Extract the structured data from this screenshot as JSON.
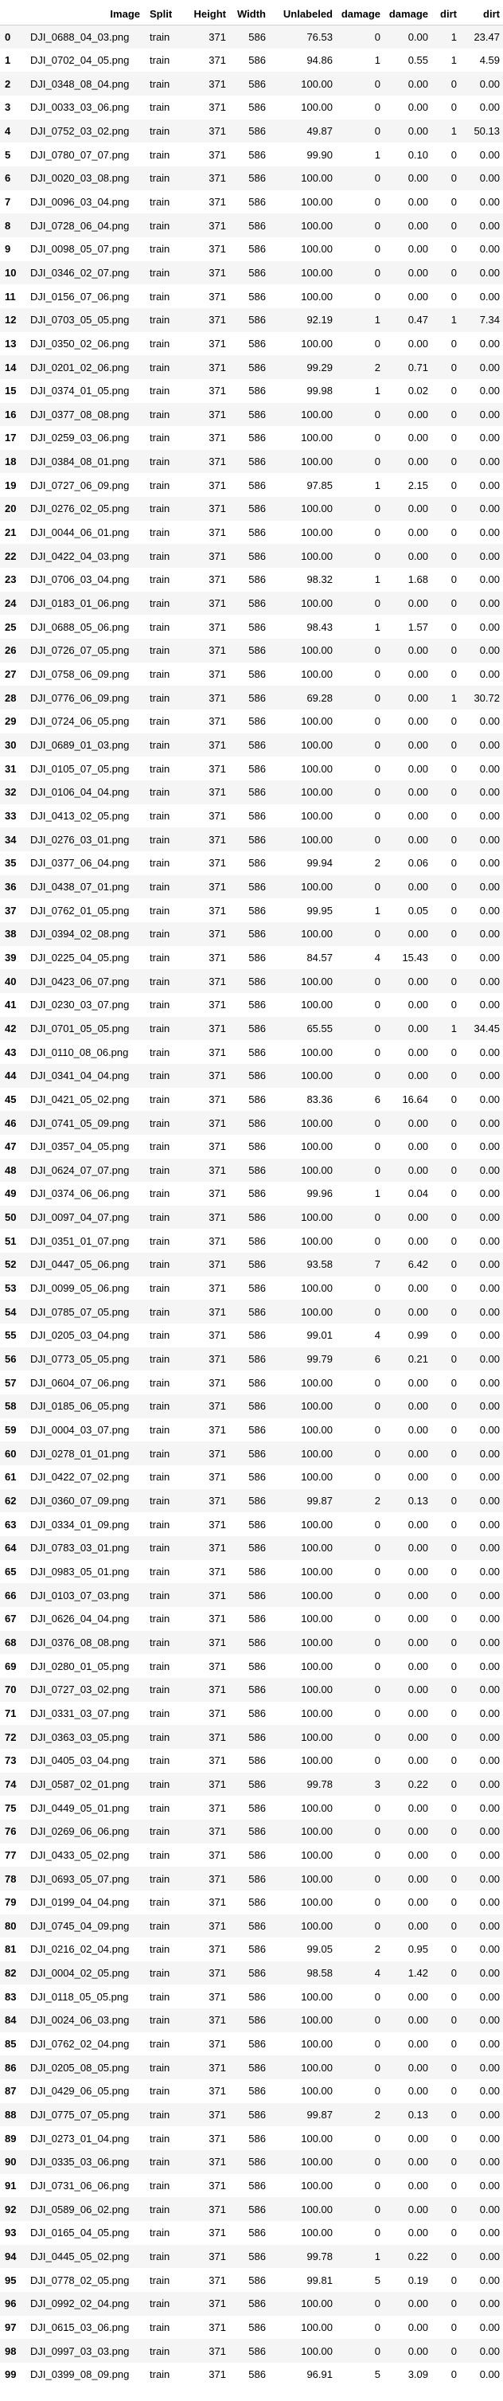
{
  "table": {
    "columns": [
      "",
      "Image",
      "Split",
      "Height",
      "Width",
      "Unlabeled",
      "damage",
      "damage",
      "dirt",
      "dirt"
    ],
    "rows": [
      [
        "0",
        "DJI_0688_04_03.png",
        "train",
        "371",
        "586",
        "76.53",
        "0",
        "0.00",
        "1",
        "23.47"
      ],
      [
        "1",
        "DJI_0702_04_05.png",
        "train",
        "371",
        "586",
        "94.86",
        "1",
        "0.55",
        "1",
        "4.59"
      ],
      [
        "2",
        "DJI_0348_08_04.png",
        "train",
        "371",
        "586",
        "100.00",
        "0",
        "0.00",
        "0",
        "0.00"
      ],
      [
        "3",
        "DJI_0033_03_06.png",
        "train",
        "371",
        "586",
        "100.00",
        "0",
        "0.00",
        "0",
        "0.00"
      ],
      [
        "4",
        "DJI_0752_03_02.png",
        "train",
        "371",
        "586",
        "49.87",
        "0",
        "0.00",
        "1",
        "50.13"
      ],
      [
        "5",
        "DJI_0780_07_07.png",
        "train",
        "371",
        "586",
        "99.90",
        "1",
        "0.10",
        "0",
        "0.00"
      ],
      [
        "6",
        "DJI_0020_03_08.png",
        "train",
        "371",
        "586",
        "100.00",
        "0",
        "0.00",
        "0",
        "0.00"
      ],
      [
        "7",
        "DJI_0096_03_04.png",
        "train",
        "371",
        "586",
        "100.00",
        "0",
        "0.00",
        "0",
        "0.00"
      ],
      [
        "8",
        "DJI_0728_06_04.png",
        "train",
        "371",
        "586",
        "100.00",
        "0",
        "0.00",
        "0",
        "0.00"
      ],
      [
        "9",
        "DJI_0098_05_07.png",
        "train",
        "371",
        "586",
        "100.00",
        "0",
        "0.00",
        "0",
        "0.00"
      ],
      [
        "10",
        "DJI_0346_02_07.png",
        "train",
        "371",
        "586",
        "100.00",
        "0",
        "0.00",
        "0",
        "0.00"
      ],
      [
        "11",
        "DJI_0156_07_06.png",
        "train",
        "371",
        "586",
        "100.00",
        "0",
        "0.00",
        "0",
        "0.00"
      ],
      [
        "12",
        "DJI_0703_05_05.png",
        "train",
        "371",
        "586",
        "92.19",
        "1",
        "0.47",
        "1",
        "7.34"
      ],
      [
        "13",
        "DJI_0350_02_06.png",
        "train",
        "371",
        "586",
        "100.00",
        "0",
        "0.00",
        "0",
        "0.00"
      ],
      [
        "14",
        "DJI_0201_02_06.png",
        "train",
        "371",
        "586",
        "99.29",
        "2",
        "0.71",
        "0",
        "0.00"
      ],
      [
        "15",
        "DJI_0374_01_05.png",
        "train",
        "371",
        "586",
        "99.98",
        "1",
        "0.02",
        "0",
        "0.00"
      ],
      [
        "16",
        "DJI_0377_08_08.png",
        "train",
        "371",
        "586",
        "100.00",
        "0",
        "0.00",
        "0",
        "0.00"
      ],
      [
        "17",
        "DJI_0259_03_06.png",
        "train",
        "371",
        "586",
        "100.00",
        "0",
        "0.00",
        "0",
        "0.00"
      ],
      [
        "18",
        "DJI_0384_08_01.png",
        "train",
        "371",
        "586",
        "100.00",
        "0",
        "0.00",
        "0",
        "0.00"
      ],
      [
        "19",
        "DJI_0727_06_09.png",
        "train",
        "371",
        "586",
        "97.85",
        "1",
        "2.15",
        "0",
        "0.00"
      ],
      [
        "20",
        "DJI_0276_02_05.png",
        "train",
        "371",
        "586",
        "100.00",
        "0",
        "0.00",
        "0",
        "0.00"
      ],
      [
        "21",
        "DJI_0044_06_01.png",
        "train",
        "371",
        "586",
        "100.00",
        "0",
        "0.00",
        "0",
        "0.00"
      ],
      [
        "22",
        "DJI_0422_04_03.png",
        "train",
        "371",
        "586",
        "100.00",
        "0",
        "0.00",
        "0",
        "0.00"
      ],
      [
        "23",
        "DJI_0706_03_04.png",
        "train",
        "371",
        "586",
        "98.32",
        "1",
        "1.68",
        "0",
        "0.00"
      ],
      [
        "24",
        "DJI_0183_01_06.png",
        "train",
        "371",
        "586",
        "100.00",
        "0",
        "0.00",
        "0",
        "0.00"
      ],
      [
        "25",
        "DJI_0688_05_06.png",
        "train",
        "371",
        "586",
        "98.43",
        "1",
        "1.57",
        "0",
        "0.00"
      ],
      [
        "26",
        "DJI_0726_07_05.png",
        "train",
        "371",
        "586",
        "100.00",
        "0",
        "0.00",
        "0",
        "0.00"
      ],
      [
        "27",
        "DJI_0758_06_09.png",
        "train",
        "371",
        "586",
        "100.00",
        "0",
        "0.00",
        "0",
        "0.00"
      ],
      [
        "28",
        "DJI_0776_06_09.png",
        "train",
        "371",
        "586",
        "69.28",
        "0",
        "0.00",
        "1",
        "30.72"
      ],
      [
        "29",
        "DJI_0724_06_05.png",
        "train",
        "371",
        "586",
        "100.00",
        "0",
        "0.00",
        "0",
        "0.00"
      ],
      [
        "30",
        "DJI_0689_01_03.png",
        "train",
        "371",
        "586",
        "100.00",
        "0",
        "0.00",
        "0",
        "0.00"
      ],
      [
        "31",
        "DJI_0105_07_05.png",
        "train",
        "371",
        "586",
        "100.00",
        "0",
        "0.00",
        "0",
        "0.00"
      ],
      [
        "32",
        "DJI_0106_04_04.png",
        "train",
        "371",
        "586",
        "100.00",
        "0",
        "0.00",
        "0",
        "0.00"
      ],
      [
        "33",
        "DJI_0413_02_05.png",
        "train",
        "371",
        "586",
        "100.00",
        "0",
        "0.00",
        "0",
        "0.00"
      ],
      [
        "34",
        "DJI_0276_03_01.png",
        "train",
        "371",
        "586",
        "100.00",
        "0",
        "0.00",
        "0",
        "0.00"
      ],
      [
        "35",
        "DJI_0377_06_04.png",
        "train",
        "371",
        "586",
        "99.94",
        "2",
        "0.06",
        "0",
        "0.00"
      ],
      [
        "36",
        "DJI_0438_07_01.png",
        "train",
        "371",
        "586",
        "100.00",
        "0",
        "0.00",
        "0",
        "0.00"
      ],
      [
        "37",
        "DJI_0762_01_05.png",
        "train",
        "371",
        "586",
        "99.95",
        "1",
        "0.05",
        "0",
        "0.00"
      ],
      [
        "38",
        "DJI_0394_02_08.png",
        "train",
        "371",
        "586",
        "100.00",
        "0",
        "0.00",
        "0",
        "0.00"
      ],
      [
        "39",
        "DJI_0225_04_05.png",
        "train",
        "371",
        "586",
        "84.57",
        "4",
        "15.43",
        "0",
        "0.00"
      ],
      [
        "40",
        "DJI_0423_06_07.png",
        "train",
        "371",
        "586",
        "100.00",
        "0",
        "0.00",
        "0",
        "0.00"
      ],
      [
        "41",
        "DJI_0230_03_07.png",
        "train",
        "371",
        "586",
        "100.00",
        "0",
        "0.00",
        "0",
        "0.00"
      ],
      [
        "42",
        "DJI_0701_05_05.png",
        "train",
        "371",
        "586",
        "65.55",
        "0",
        "0.00",
        "1",
        "34.45"
      ],
      [
        "43",
        "DJI_0110_08_06.png",
        "train",
        "371",
        "586",
        "100.00",
        "0",
        "0.00",
        "0",
        "0.00"
      ],
      [
        "44",
        "DJI_0341_04_04.png",
        "train",
        "371",
        "586",
        "100.00",
        "0",
        "0.00",
        "0",
        "0.00"
      ],
      [
        "45",
        "DJI_0421_05_02.png",
        "train",
        "371",
        "586",
        "83.36",
        "6",
        "16.64",
        "0",
        "0.00"
      ],
      [
        "46",
        "DJI_0741_05_09.png",
        "train",
        "371",
        "586",
        "100.00",
        "0",
        "0.00",
        "0",
        "0.00"
      ],
      [
        "47",
        "DJI_0357_04_05.png",
        "train",
        "371",
        "586",
        "100.00",
        "0",
        "0.00",
        "0",
        "0.00"
      ],
      [
        "48",
        "DJI_0624_07_07.png",
        "train",
        "371",
        "586",
        "100.00",
        "0",
        "0.00",
        "0",
        "0.00"
      ],
      [
        "49",
        "DJI_0374_06_06.png",
        "train",
        "371",
        "586",
        "99.96",
        "1",
        "0.04",
        "0",
        "0.00"
      ],
      [
        "50",
        "DJI_0097_04_07.png",
        "train",
        "371",
        "586",
        "100.00",
        "0",
        "0.00",
        "0",
        "0.00"
      ],
      [
        "51",
        "DJI_0351_01_07.png",
        "train",
        "371",
        "586",
        "100.00",
        "0",
        "0.00",
        "0",
        "0.00"
      ],
      [
        "52",
        "DJI_0447_05_06.png",
        "train",
        "371",
        "586",
        "93.58",
        "7",
        "6.42",
        "0",
        "0.00"
      ],
      [
        "53",
        "DJI_0099_05_06.png",
        "train",
        "371",
        "586",
        "100.00",
        "0",
        "0.00",
        "0",
        "0.00"
      ],
      [
        "54",
        "DJI_0785_07_05.png",
        "train",
        "371",
        "586",
        "100.00",
        "0",
        "0.00",
        "0",
        "0.00"
      ],
      [
        "55",
        "DJI_0205_03_04.png",
        "train",
        "371",
        "586",
        "99.01",
        "4",
        "0.99",
        "0",
        "0.00"
      ],
      [
        "56",
        "DJI_0773_05_05.png",
        "train",
        "371",
        "586",
        "99.79",
        "6",
        "0.21",
        "0",
        "0.00"
      ],
      [
        "57",
        "DJI_0604_07_06.png",
        "train",
        "371",
        "586",
        "100.00",
        "0",
        "0.00",
        "0",
        "0.00"
      ],
      [
        "58",
        "DJI_0185_06_05.png",
        "train",
        "371",
        "586",
        "100.00",
        "0",
        "0.00",
        "0",
        "0.00"
      ],
      [
        "59",
        "DJI_0004_03_07.png",
        "train",
        "371",
        "586",
        "100.00",
        "0",
        "0.00",
        "0",
        "0.00"
      ],
      [
        "60",
        "DJI_0278_01_01.png",
        "train",
        "371",
        "586",
        "100.00",
        "0",
        "0.00",
        "0",
        "0.00"
      ],
      [
        "61",
        "DJI_0422_07_02.png",
        "train",
        "371",
        "586",
        "100.00",
        "0",
        "0.00",
        "0",
        "0.00"
      ],
      [
        "62",
        "DJI_0360_07_09.png",
        "train",
        "371",
        "586",
        "99.87",
        "2",
        "0.13",
        "0",
        "0.00"
      ],
      [
        "63",
        "DJI_0334_01_09.png",
        "train",
        "371",
        "586",
        "100.00",
        "0",
        "0.00",
        "0",
        "0.00"
      ],
      [
        "64",
        "DJI_0783_03_01.png",
        "train",
        "371",
        "586",
        "100.00",
        "0",
        "0.00",
        "0",
        "0.00"
      ],
      [
        "65",
        "DJI_0983_05_01.png",
        "train",
        "371",
        "586",
        "100.00",
        "0",
        "0.00",
        "0",
        "0.00"
      ],
      [
        "66",
        "DJI_0103_07_03.png",
        "train",
        "371",
        "586",
        "100.00",
        "0",
        "0.00",
        "0",
        "0.00"
      ],
      [
        "67",
        "DJI_0626_04_04.png",
        "train",
        "371",
        "586",
        "100.00",
        "0",
        "0.00",
        "0",
        "0.00"
      ],
      [
        "68",
        "DJI_0376_08_08.png",
        "train",
        "371",
        "586",
        "100.00",
        "0",
        "0.00",
        "0",
        "0.00"
      ],
      [
        "69",
        "DJI_0280_01_05.png",
        "train",
        "371",
        "586",
        "100.00",
        "0",
        "0.00",
        "0",
        "0.00"
      ],
      [
        "70",
        "DJI_0727_03_02.png",
        "train",
        "371",
        "586",
        "100.00",
        "0",
        "0.00",
        "0",
        "0.00"
      ],
      [
        "71",
        "DJI_0331_03_07.png",
        "train",
        "371",
        "586",
        "100.00",
        "0",
        "0.00",
        "0",
        "0.00"
      ],
      [
        "72",
        "DJI_0363_03_05.png",
        "train",
        "371",
        "586",
        "100.00",
        "0",
        "0.00",
        "0",
        "0.00"
      ],
      [
        "73",
        "DJI_0405_03_04.png",
        "train",
        "371",
        "586",
        "100.00",
        "0",
        "0.00",
        "0",
        "0.00"
      ],
      [
        "74",
        "DJI_0587_02_01.png",
        "train",
        "371",
        "586",
        "99.78",
        "3",
        "0.22",
        "0",
        "0.00"
      ],
      [
        "75",
        "DJI_0449_05_01.png",
        "train",
        "371",
        "586",
        "100.00",
        "0",
        "0.00",
        "0",
        "0.00"
      ],
      [
        "76",
        "DJI_0269_06_06.png",
        "train",
        "371",
        "586",
        "100.00",
        "0",
        "0.00",
        "0",
        "0.00"
      ],
      [
        "77",
        "DJI_0433_05_02.png",
        "train",
        "371",
        "586",
        "100.00",
        "0",
        "0.00",
        "0",
        "0.00"
      ],
      [
        "78",
        "DJI_0693_05_07.png",
        "train",
        "371",
        "586",
        "100.00",
        "0",
        "0.00",
        "0",
        "0.00"
      ],
      [
        "79",
        "DJI_0199_04_04.png",
        "train",
        "371",
        "586",
        "100.00",
        "0",
        "0.00",
        "0",
        "0.00"
      ],
      [
        "80",
        "DJI_0745_04_09.png",
        "train",
        "371",
        "586",
        "100.00",
        "0",
        "0.00",
        "0",
        "0.00"
      ],
      [
        "81",
        "DJI_0216_02_04.png",
        "train",
        "371",
        "586",
        "99.05",
        "2",
        "0.95",
        "0",
        "0.00"
      ],
      [
        "82",
        "DJI_0004_02_05.png",
        "train",
        "371",
        "586",
        "98.58",
        "4",
        "1.42",
        "0",
        "0.00"
      ],
      [
        "83",
        "DJI_0118_05_05.png",
        "train",
        "371",
        "586",
        "100.00",
        "0",
        "0.00",
        "0",
        "0.00"
      ],
      [
        "84",
        "DJI_0024_06_03.png",
        "train",
        "371",
        "586",
        "100.00",
        "0",
        "0.00",
        "0",
        "0.00"
      ],
      [
        "85",
        "DJI_0762_02_04.png",
        "train",
        "371",
        "586",
        "100.00",
        "0",
        "0.00",
        "0",
        "0.00"
      ],
      [
        "86",
        "DJI_0205_08_05.png",
        "train",
        "371",
        "586",
        "100.00",
        "0",
        "0.00",
        "0",
        "0.00"
      ],
      [
        "87",
        "DJI_0429_06_05.png",
        "train",
        "371",
        "586",
        "100.00",
        "0",
        "0.00",
        "0",
        "0.00"
      ],
      [
        "88",
        "DJI_0775_07_05.png",
        "train",
        "371",
        "586",
        "99.87",
        "2",
        "0.13",
        "0",
        "0.00"
      ],
      [
        "89",
        "DJI_0273_01_04.png",
        "train",
        "371",
        "586",
        "100.00",
        "0",
        "0.00",
        "0",
        "0.00"
      ],
      [
        "90",
        "DJI_0335_03_06.png",
        "train",
        "371",
        "586",
        "100.00",
        "0",
        "0.00",
        "0",
        "0.00"
      ],
      [
        "91",
        "DJI_0731_06_06.png",
        "train",
        "371",
        "586",
        "100.00",
        "0",
        "0.00",
        "0",
        "0.00"
      ],
      [
        "92",
        "DJI_0589_06_02.png",
        "train",
        "371",
        "586",
        "100.00",
        "0",
        "0.00",
        "0",
        "0.00"
      ],
      [
        "93",
        "DJI_0165_04_05.png",
        "train",
        "371",
        "586",
        "100.00",
        "0",
        "0.00",
        "0",
        "0.00"
      ],
      [
        "94",
        "DJI_0445_05_02.png",
        "train",
        "371",
        "586",
        "99.78",
        "1",
        "0.22",
        "0",
        "0.00"
      ],
      [
        "95",
        "DJI_0778_02_05.png",
        "train",
        "371",
        "586",
        "99.81",
        "5",
        "0.19",
        "0",
        "0.00"
      ],
      [
        "96",
        "DJI_0992_02_04.png",
        "train",
        "371",
        "586",
        "100.00",
        "0",
        "0.00",
        "0",
        "0.00"
      ],
      [
        "97",
        "DJI_0615_03_06.png",
        "train",
        "371",
        "586",
        "100.00",
        "0",
        "0.00",
        "0",
        "0.00"
      ],
      [
        "98",
        "DJI_0997_03_03.png",
        "train",
        "371",
        "586",
        "100.00",
        "0",
        "0.00",
        "0",
        "0.00"
      ],
      [
        "99",
        "DJI_0399_08_09.png",
        "train",
        "371",
        "586",
        "96.91",
        "5",
        "3.09",
        "0",
        "0.00"
      ]
    ]
  }
}
